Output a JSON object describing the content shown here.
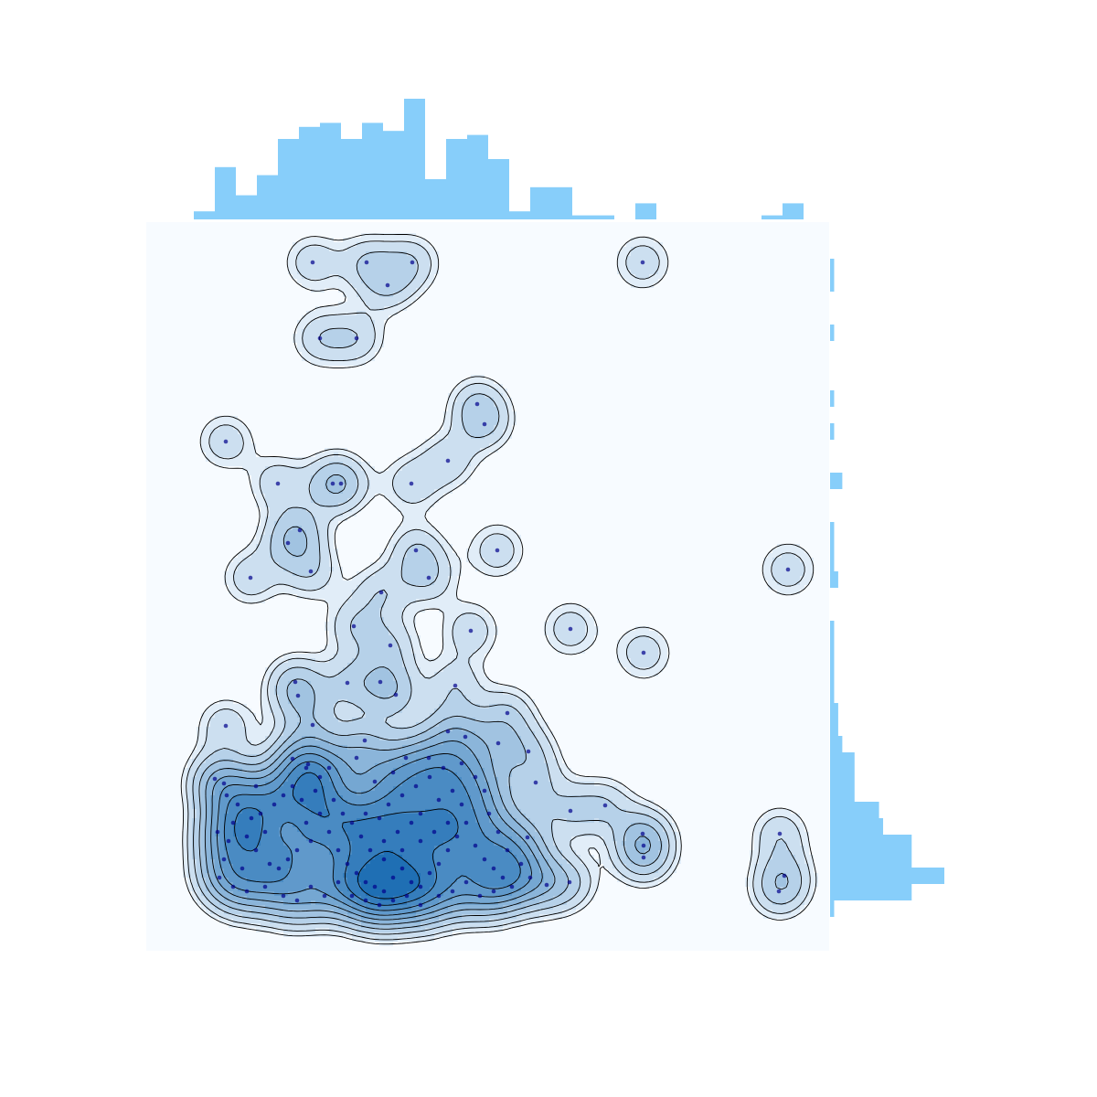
{
  "chart_data": {
    "type": "joint",
    "xlim": [
      0,
      747
    ],
    "ylim": [
      0,
      797
    ],
    "color": "#00008b",
    "hist_color": "#87cefa",
    "kde_colors": [
      "#f7fbff",
      "#1f6fb4"
    ],
    "x": [
      182,
      241,
      291,
      543,
      264,
      190,
      230,
      362,
      370,
      87,
      330,
      144,
      204,
      213,
      290,
      168,
      155,
      295,
      384,
      702,
      180,
      114,
      309,
      257,
      227,
      464,
      355,
      267,
      544,
      163,
      220,
      256,
      338,
      273,
      395,
      166,
      87,
      182,
      239,
      330,
      349,
      418,
      385,
      309,
      284,
      230,
      177,
      75,
      85,
      426,
      502,
      464,
      543,
      544,
      544,
      693,
      698,
      692,
      463,
      438,
      417,
      130,
      125,
      140,
      150,
      160,
      170,
      175,
      180,
      165,
      155,
      145,
      135,
      120,
      110,
      115,
      100,
      95,
      90,
      85,
      80,
      78,
      88,
      120,
      185,
      190,
      200,
      210,
      220,
      230,
      240,
      250,
      260,
      270,
      280,
      290,
      300,
      310,
      320,
      330,
      340,
      350,
      360,
      370,
      380,
      390,
      400,
      345,
      335,
      320,
      300,
      290,
      275,
      260,
      245,
      235,
      225,
      215,
      205,
      240,
      255,
      265,
      280,
      295,
      310,
      325,
      345,
      360,
      370,
      375,
      385,
      395,
      410,
      420,
      150,
      165,
      180,
      195,
      210,
      225,
      240,
      255,
      270,
      285,
      300,
      320,
      335,
      350,
      365,
      380,
      190,
      175,
      160,
      200,
      105,
      95,
      110,
      130,
      260,
      280,
      300,
      315,
      330,
      270,
      250
    ],
    "y": [
      753,
      753,
      753,
      753,
      728,
      670,
      670,
      598,
      576,
      557,
      536,
      511,
      511,
      511,
      511,
      460,
      446,
      438,
      438,
      417,
      415,
      408,
      408,
      392,
      355,
      352,
      350,
      334,
      326,
      294,
      293,
      294,
      290,
      280,
      260,
      279,
      246,
      247,
      230,
      240,
      234,
      218,
      227,
      211,
      211,
      211,
      204,
      188,
      183,
      184,
      159,
      153,
      128,
      115,
      102,
      128,
      82,
      65,
      75,
      72,
      124,
      130,
      150,
      160,
      170,
      180,
      165,
      140,
      120,
      110,
      100,
      90,
      95,
      110,
      125,
      145,
      160,
      140,
      120,
      100,
      80,
      130,
      170,
      180,
      175,
      150,
      130,
      110,
      95,
      85,
      75,
      70,
      65,
      80,
      90,
      75,
      70,
      85,
      95,
      110,
      125,
      140,
      115,
      100,
      90,
      80,
      70,
      160,
      175,
      165,
      150,
      140,
      130,
      120,
      110,
      125,
      140,
      150,
      165,
      150,
      145,
      160,
      170,
      180,
      190,
      200,
      205,
      190,
      175,
      150,
      130,
      110,
      95,
      80,
      60,
      55,
      70,
      60,
      75,
      60,
      55,
      50,
      55,
      60,
      50,
      60,
      65,
      75,
      60,
      65,
      190,
      200,
      210,
      200,
      90,
      70,
      65,
      70,
      100,
      110,
      120,
      130,
      140,
      195,
      185
    ],
    "x_hist": {
      "bins": [
        52,
        75,
        98,
        121,
        144,
        167,
        190,
        213,
        236,
        259,
        282,
        305,
        328,
        351,
        374,
        397,
        420,
        443,
        466,
        489,
        512,
        535,
        558,
        581,
        604,
        627,
        650,
        673,
        696,
        719
      ],
      "counts": [
        2,
        13,
        6,
        11,
        20,
        23,
        24,
        20,
        24,
        22,
        30,
        10,
        20,
        21,
        15,
        2,
        8,
        8,
        1,
        1,
        0,
        4,
        0,
        0,
        0,
        0,
        0,
        1,
        4
      ]
    },
    "y_hist": {
      "bins": [
        37,
        55,
        73,
        91,
        109,
        127,
        145,
        163,
        181,
        199,
        217,
        235,
        253,
        271,
        289,
        307,
        325,
        343,
        361,
        379,
        397,
        415,
        433,
        451,
        469,
        487,
        505,
        523,
        541,
        559,
        577,
        595,
        613,
        631,
        649,
        667,
        685,
        703,
        721,
        739,
        757
      ],
      "counts": [
        1,
        20,
        28,
        20,
        20,
        13,
        12,
        6,
        6,
        6,
        3,
        2,
        2,
        1,
        1,
        1,
        1,
        1,
        0,
        0,
        2,
        1,
        1,
        1,
        0,
        0,
        3,
        0,
        0,
        1,
        0,
        1,
        0,
        0,
        0,
        1,
        0,
        0,
        1,
        1
      ]
    }
  }
}
